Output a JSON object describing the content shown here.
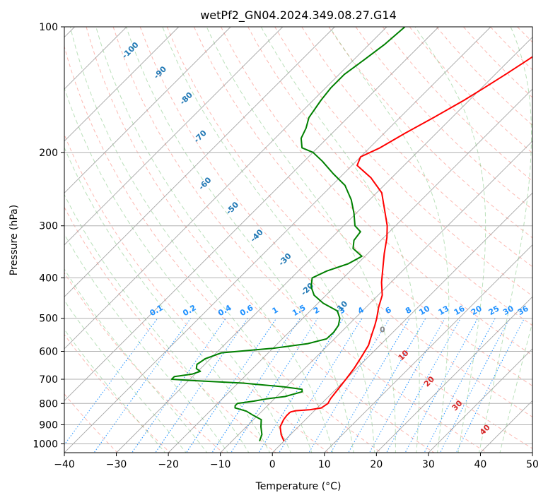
{
  "chart_data": {
    "type": "line",
    "title": "wetPf2_GN04.2024.349.08.27.G14",
    "xlabel": "Temperature (°C)",
    "ylabel": "Pressure (hPa)",
    "xlim": [
      -40,
      50
    ],
    "ylim": [
      1050,
      100
    ],
    "y_scale": "log",
    "x_ticks": [
      -40,
      -30,
      -20,
      -10,
      0,
      10,
      20,
      30,
      40,
      50
    ],
    "y_ticks": [
      100,
      200,
      300,
      400,
      500,
      600,
      700,
      800,
      900,
      1000
    ],
    "grid": true,
    "skew_degrees": 45,
    "colors": {
      "temperature": "#ff0000",
      "dewpoint": "#008000",
      "dry_adiabats": "#fa8072",
      "moist_adiabats": "#66bb66",
      "mixing_ratio": "#1e90ff",
      "isotherms": "#888888",
      "moist_labels": "#d62728",
      "adiabat_labels": "#1f77b4"
    },
    "series": [
      {
        "key": "temperature",
        "pressure": [
          985,
          950,
          910,
          875,
          855,
          842,
          838,
          833,
          828,
          820,
          800,
          780,
          750,
          700,
          660,
          620,
          580,
          550,
          520,
          500,
          470,
          440,
          410,
          380,
          350,
          320,
          300,
          280,
          250,
          230,
          215,
          205,
          195,
          180,
          165,
          150,
          140,
          130,
          120,
          110,
          100
        ],
        "temperature": [
          0.0,
          -1.8,
          -3.5,
          -4.2,
          -4.4,
          -4.4,
          -4.3,
          -3.6,
          -1.0,
          0.8,
          1.2,
          0.8,
          0.5,
          0.0,
          -0.5,
          -1.3,
          -2.2,
          -3.5,
          -4.8,
          -5.8,
          -7.6,
          -9.2,
          -11.8,
          -14.2,
          -16.8,
          -19.4,
          -21.6,
          -24.4,
          -29.0,
          -34.0,
          -39.0,
          -40.0,
          -38.0,
          -36.0,
          -33.5,
          -31.0,
          -29.5,
          -28.0,
          -26.5,
          -25.0,
          -23.5
        ]
      },
      {
        "key": "dewpoint",
        "pressure": [
          985,
          950,
          910,
          875,
          855,
          835,
          820,
          810,
          800,
          790,
          780,
          770,
          750,
          740,
          730,
          715,
          705,
          700,
          690,
          680,
          670,
          660,
          645,
          625,
          605,
          590,
          575,
          560,
          540,
          520,
          500,
          480,
          460,
          440,
          420,
          400,
          385,
          370,
          355,
          340,
          325,
          310,
          300,
          280,
          260,
          240,
          225,
          210,
          200,
          195,
          185,
          175,
          165,
          150,
          140,
          130,
          120,
          110,
          100
        ],
        "temperature": [
          -4.7,
          -5.5,
          -7.2,
          -8.5,
          -10.8,
          -13.0,
          -15.8,
          -16.2,
          -16.2,
          -13.5,
          -11.5,
          -8.4,
          -6.0,
          -6.5,
          -10.5,
          -19.0,
          -29.5,
          -33.5,
          -33.5,
          -30.5,
          -29.5,
          -30.8,
          -31.5,
          -31.0,
          -29.0,
          -20.0,
          -14.2,
          -11.5,
          -11.4,
          -11.8,
          -12.9,
          -14.8,
          -19.0,
          -22.3,
          -24.5,
          -26.0,
          -24.5,
          -21.8,
          -20.6,
          -23.8,
          -25.2,
          -25.6,
          -27.8,
          -30.4,
          -33.5,
          -37.5,
          -42.0,
          -46.5,
          -50.0,
          -53.0,
          -55.0,
          -56.0,
          -57.5,
          -58.5,
          -59.0,
          -59.0,
          -58.0,
          -57.0,
          -56.5
        ]
      }
    ],
    "dry_adiabat_labels": [
      "-100",
      "-90",
      "-80",
      "-70",
      "-60",
      "-50",
      "-40",
      "-30",
      "-20",
      "-10"
    ],
    "moist_adiabat_labels": [
      "10",
      "20",
      "30",
      "40"
    ],
    "zero_label": "0",
    "mixing_ratio_labels": [
      "0.1",
      "0.2",
      "0.4",
      "0.6",
      "1",
      "1.5",
      "2",
      "3",
      "4",
      "6",
      "8",
      "10",
      "13",
      "16",
      "20",
      "25",
      "30",
      "36"
    ],
    "mixing_ratio_values": [
      0.1,
      0.2,
      0.4,
      0.6,
      1,
      1.5,
      2,
      3,
      4,
      6,
      8,
      10,
      13,
      16,
      20,
      25,
      30,
      36
    ]
  }
}
